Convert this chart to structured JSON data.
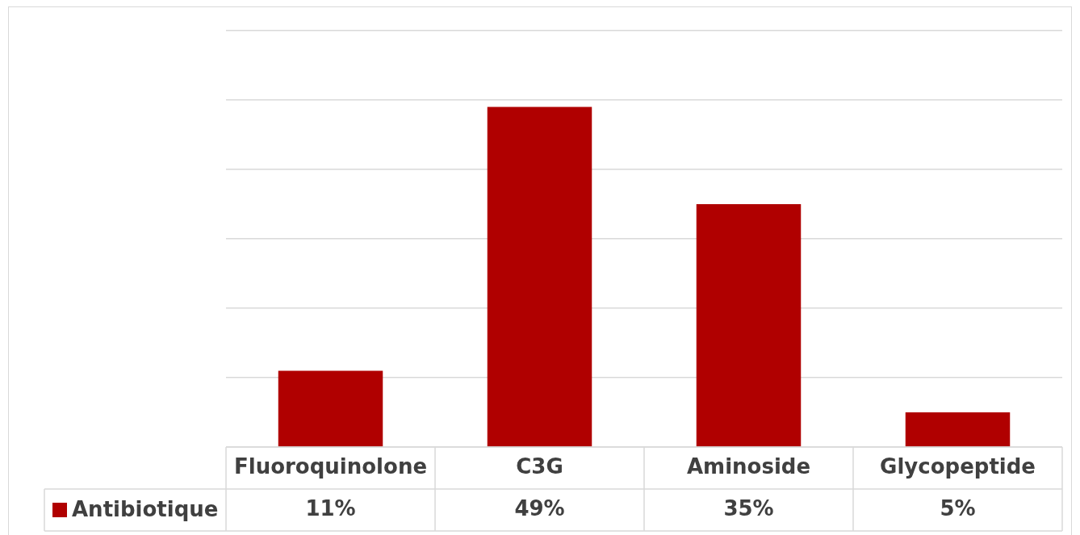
{
  "chart_data": {
    "type": "bar",
    "categories": [
      "Fluoroquinolone",
      "C3G",
      "Aminoside",
      "Glycopeptide"
    ],
    "series": [
      {
        "name": "Antibiotique",
        "color": "#b00000",
        "values": [
          11,
          49,
          35,
          5
        ],
        "value_labels": [
          "11%",
          "49%",
          "35%",
          "5%"
        ]
      }
    ],
    "ylim": [
      0,
      60
    ],
    "yticks": [
      {
        "value": 0,
        "label": null
      },
      {
        "value": 10,
        "label": null
      },
      {
        "value": 20,
        "label": null
      },
      {
        "value": 30,
        "label": null
      },
      {
        "value": 40,
        "label": null
      },
      {
        "value": 50,
        "label": null
      },
      {
        "value": 60,
        "label": null
      }
    ],
    "grid": "y",
    "legend": "bottom"
  }
}
